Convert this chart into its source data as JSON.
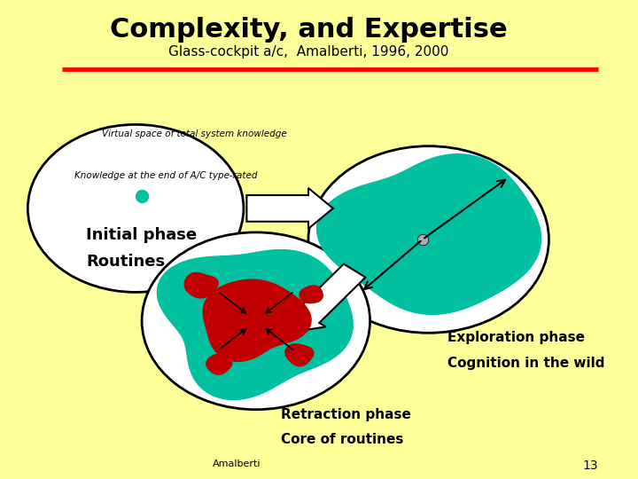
{
  "title_main": "Complexity, and Expertise",
  "title_sub": "Glass-cockpit a/c,  Amalberti, 1996, 2000",
  "background_color": "#FFFF99",
  "label_explore1": "Exploration phase",
  "label_explore2": "Cognition in the wild",
  "label_retract1": "Retraction phase",
  "label_retract2": "Core of routines",
  "label_amalberti": "Amalberti",
  "page_num": "13",
  "teal": "#00C0A0",
  "dark_red": "#C00000"
}
